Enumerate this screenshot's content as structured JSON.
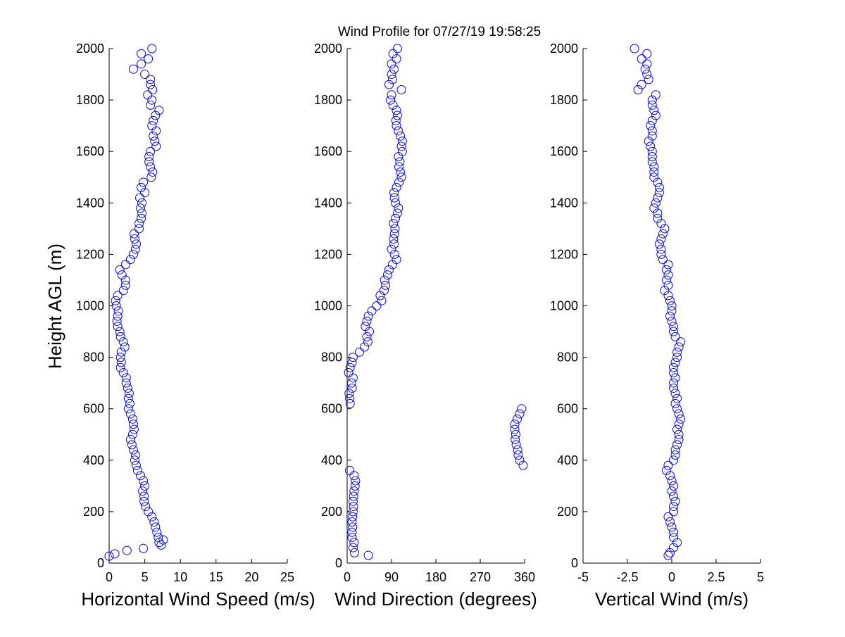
{
  "title": "Wind Profile for  07/27/19 19:58:25",
  "marker_color": "#0000ff",
  "chart_data": [
    {
      "type": "scatter",
      "xlabel": "Horizontal Wind Speed (m/s)",
      "ylabel": "Height AGL (m)",
      "xlim": [
        0,
        25
      ],
      "ylim": [
        0,
        2000
      ],
      "xticks": [
        "0",
        "5",
        "10",
        "15",
        "20",
        "25"
      ],
      "yticks": [
        "0",
        "200",
        "400",
        "600",
        "800",
        "1000",
        "1200",
        "1400",
        "1600",
        "1800",
        "2000"
      ],
      "grid": false,
      "points_extra": [
        [
          0,
          27
        ],
        [
          0.8,
          36
        ],
        [
          2.5,
          49
        ],
        [
          4.8,
          57
        ],
        [
          7.3,
          70
        ],
        [
          7.6,
          90
        ]
      ],
      "height_start": 80,
      "height_step": 20,
      "values": [
        7.0,
        6.9,
        6.7,
        6.5,
        6.3,
        6.0,
        5.5,
        5.1,
        4.9,
        4.9,
        4.7,
        5.0,
        4.8,
        4.4,
        4.0,
        3.8,
        3.6,
        3.7,
        3.4,
        3.2,
        3.0,
        3.3,
        3.5,
        3.4,
        3.3,
        3.0,
        2.7,
        2.9,
        2.7,
        2.8,
        2.6,
        2.4,
        2.4,
        2.0,
        1.6,
        1.7,
        1.6,
        1.7,
        2.2,
        2.0,
        1.6,
        1.5,
        1.2,
        1.1,
        1.2,
        1.3,
        1.0,
        0.9,
        1.2,
        2.0,
        2.3,
        2.3,
        1.8,
        1.5,
        2.3,
        3.0,
        3.4,
        3.7,
        3.8,
        3.6,
        3.5,
        4.2,
        4.2,
        4.5,
        4.6,
        4.4,
        4.6,
        4.3,
        5.0,
        4.5,
        4.8,
        5.9,
        6.1,
        5.8,
        5.6,
        5.6,
        5.8,
        6.6,
        6.4,
        6.2,
        6.6,
        6.0,
        6.2,
        6.5,
        7.0,
        5.8,
        6.0,
        5.4,
        6.1,
        5.8,
        5.8,
        5.0,
        3.4,
        4.5,
        5.5,
        4.5,
        6.0
      ]
    },
    {
      "type": "scatter",
      "xlabel": "Wind Direction (degrees)",
      "xlim": [
        0,
        360
      ],
      "ylim": [
        0,
        2000
      ],
      "xticks": [
        "0",
        "90",
        "180",
        "270",
        "360"
      ],
      "yticks": [
        "0",
        "200",
        "400",
        "600",
        "800",
        "1000",
        "1200",
        "1400",
        "1600",
        "1800",
        "2000"
      ],
      "grid": false,
      "points_extra": [
        [
          43,
          30
        ],
        [
          15,
          40
        ],
        [
          12,
          60
        ]
      ],
      "height_start": 80,
      "height_step": 20,
      "values": [
        14,
        10,
        10,
        11,
        10,
        11,
        12,
        13,
        12,
        13,
        14,
        16,
        17,
        14,
        5,
        357,
        350,
        347,
        346,
        343,
        341,
        342,
        340,
        340,
        345,
        350,
        354,
        6,
        5,
        4,
        10,
        9,
        12,
        3,
        6,
        10,
        12,
        25,
        35,
        42,
        40,
        45,
        37,
        40,
        43,
        50,
        60,
        70,
        67,
        75,
        78,
        76,
        82,
        85,
        92,
        100,
        96,
        90,
        95,
        94,
        96,
        97,
        94,
        98,
        102,
        104,
        98,
        96,
        95,
        100,
        105,
        110,
        108,
        105,
        107,
        104,
        112,
        110,
        112,
        108,
        104,
        100,
        99,
        102,
        100,
        93,
        88,
        90,
        110,
        85,
        92,
        90,
        95,
        90,
        100,
        93,
        102
      ]
    },
    {
      "type": "scatter",
      "xlabel": "Vertical Wind (m/s)",
      "xlim": [
        -5,
        5
      ],
      "ylim": [
        0,
        2000
      ],
      "xticks": [
        "-5",
        "-2.5",
        "0",
        "2.5",
        "5"
      ],
      "yticks": [
        "0",
        "200",
        "400",
        "600",
        "800",
        "1000",
        "1200",
        "1400",
        "1600",
        "1800",
        "2000"
      ],
      "grid": false,
      "points_extra": [
        [
          -0.2,
          30
        ],
        [
          -0.1,
          40
        ],
        [
          0.1,
          60
        ]
      ],
      "height_start": 80,
      "height_step": 20,
      "values": [
        0.3,
        0.1,
        0.1,
        0.0,
        -0.1,
        -0.2,
        0.1,
        0.1,
        0.2,
        0.1,
        0.0,
        0.1,
        0.0,
        -0.1,
        -0.3,
        -0.2,
        0.1,
        0.2,
        0.2,
        0.3,
        0.4,
        0.4,
        0.3,
        0.4,
        0.5,
        0.4,
        0.3,
        0.2,
        0.3,
        0.2,
        0.1,
        0.1,
        0.2,
        0.1,
        0.1,
        0.2,
        0.3,
        0.3,
        0.4,
        0.5,
        0.2,
        0.1,
        0.1,
        0.0,
        -0.1,
        0.0,
        0.0,
        -0.1,
        -0.2,
        -0.4,
        -0.2,
        -0.3,
        -0.2,
        -0.3,
        -0.2,
        -0.5,
        -0.6,
        -0.6,
        -0.7,
        -0.6,
        -0.5,
        -0.4,
        -0.6,
        -0.8,
        -0.8,
        -1.0,
        -0.9,
        -0.8,
        -0.7,
        -0.7,
        -0.8,
        -1.0,
        -1.0,
        -1.0,
        -1.1,
        -1.1,
        -1.1,
        -1.2,
        -1.3,
        -1.1,
        -1.1,
        -1.2,
        -1.1,
        -0.9,
        -1.0,
        -1.1,
        -1.1,
        -0.9,
        -1.9,
        -1.7,
        -1.3,
        -1.4,
        -1.5,
        -1.4,
        -1.7,
        -1.4,
        -2.1
      ]
    }
  ]
}
